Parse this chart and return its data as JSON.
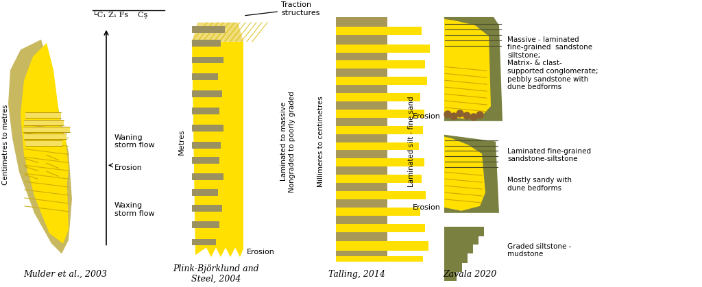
{
  "bg_color": "#ffffff",
  "yellow": "#FFE000",
  "yellow_pale": "#F0DC78",
  "yellow_pale2": "#E8D060",
  "olive_bg": "#A89850",
  "olive_dark": "#6B7040",
  "grey_bar": "#9A9060",
  "brown_pebble": "#8B7040",
  "titles": [
    "Mulder et al., 2003",
    "Plink-Björklund and\nSteel, 2004",
    "Talling, 2014",
    "Zavala 2020"
  ],
  "mulder_outer_color": "#C8B860",
  "mulder_inner_color": "#E8C820",
  "mulder_lam_color": "#F5E060",
  "mulder_hatch_color": "#C8A808",
  "plink_col_color": "#FFE000",
  "plink_grey_color": "#9A9060",
  "plink_top_hatch_color": "#D4B800",
  "talling_bg": "#A89858",
  "talling_yellow": "#FFE000",
  "zavala_olive": "#7A8040",
  "zavala_yellow": "#FFE000"
}
